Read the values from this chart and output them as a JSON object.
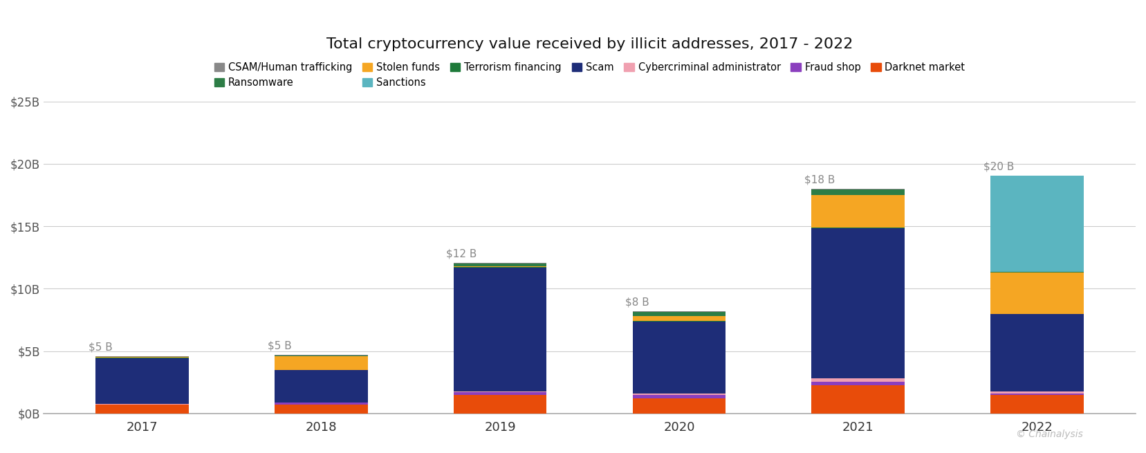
{
  "title": "Total cryptocurrency value received by illicit addresses, 2017 - 2022",
  "years": [
    "2017",
    "2018",
    "2019",
    "2020",
    "2021",
    "2022"
  ],
  "totals": [
    "$5 B",
    "$5 B",
    "$12 B",
    "$8 B",
    "$18 B",
    "$20 B"
  ],
  "categories": [
    "CSAM/Human trafficking",
    "Ransomware",
    "Stolen funds",
    "Sanctions",
    "Terrorism financing",
    "Scam",
    "Cybercriminal administrator",
    "Fraud shop",
    "Darknet market"
  ],
  "colors": [
    "#888888",
    "#2d7d46",
    "#f5a623",
    "#5bb5c0",
    "#1e7a3a",
    "#1e2d78",
    "#f0a0b0",
    "#8b3fbe",
    "#e84c0a"
  ],
  "data": {
    "CSAM/Human trafficking": [
      0.02,
      0.02,
      0.02,
      0.02,
      0.05,
      0.02
    ],
    "Ransomware": [
      0.02,
      0.05,
      0.2,
      0.35,
      0.45,
      0.06
    ],
    "Stolen funds": [
      0.05,
      1.1,
      0.1,
      0.35,
      2.6,
      3.3
    ],
    "Sanctions": [
      0.02,
      0.02,
      0.02,
      0.02,
      0.02,
      7.7
    ],
    "Terrorism financing": [
      0.02,
      0.02,
      0.05,
      0.05,
      0.05,
      0.02
    ],
    "Scam": [
      3.7,
      2.6,
      9.9,
      5.8,
      12.0,
      6.2
    ],
    "Cybercriminal administrator": [
      0.02,
      0.02,
      0.05,
      0.12,
      0.28,
      0.15
    ],
    "Fraud shop": [
      0.02,
      0.16,
      0.22,
      0.26,
      0.3,
      0.1
    ],
    "Darknet market": [
      0.7,
      0.7,
      1.5,
      1.2,
      2.25,
      1.5
    ]
  },
  "ylim": [
    0,
    25
  ],
  "yticks": [
    0,
    5,
    10,
    15,
    20,
    25
  ],
  "ytick_labels": [
    "$0B",
    "$5B",
    "$10B",
    "$15B",
    "$20B",
    "$25B"
  ],
  "annotation_color": "#888888",
  "background_color": "#ffffff",
  "watermark": "© Chainalysis"
}
